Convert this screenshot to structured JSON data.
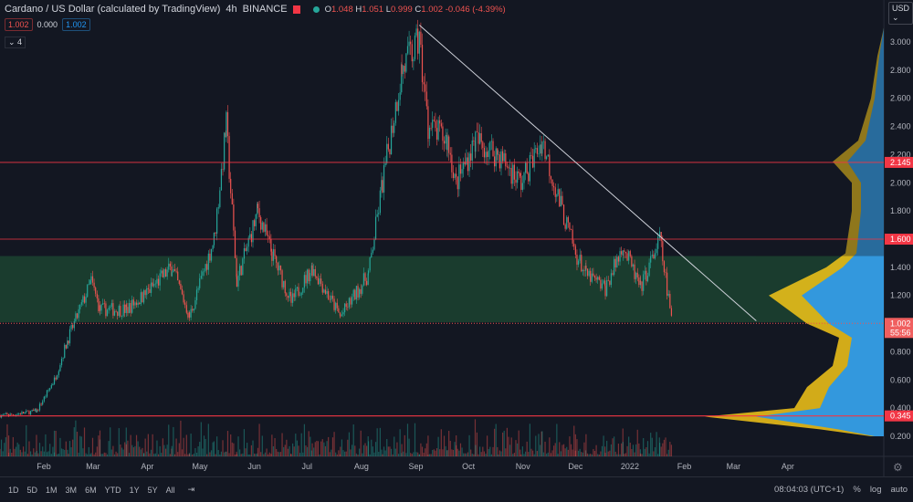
{
  "header": {
    "title": "Cardano / US Dollar (calculated by TradingView)",
    "interval": "4h",
    "exchange": "BINANCE",
    "ohlc": {
      "o_label": "O",
      "o": "1.048",
      "h_label": "H",
      "h": "1.051",
      "l_label": "L",
      "l": "0.999",
      "c_label": "C",
      "c": "1.002",
      "change": "-0.046 (-4.39%)"
    },
    "bid": "1.002",
    "spread": "0.000",
    "ask": "1.002",
    "indicator_count": "4"
  },
  "currency": "USD",
  "bottom": {
    "ranges": [
      "1D",
      "5D",
      "1M",
      "3M",
      "6M",
      "YTD",
      "1Y",
      "5Y",
      "All"
    ],
    "clock": "08:04:03 (UTC+1)",
    "percent": "%",
    "log": "log",
    "auto": "auto"
  },
  "colors": {
    "up": "#26a69a",
    "down": "#ef5350",
    "zone": "#1e4a33",
    "line": "#f23645",
    "profile_blue": "#2196f3",
    "profile_yellow": "#f5c518"
  },
  "chart_data": {
    "type": "candlestick",
    "ylim": [
      0.1,
      3.2
    ],
    "y_ticks": [
      "3.000",
      "2.800",
      "2.600",
      "2.400",
      "2.200",
      "2.000",
      "1.800",
      "1.400",
      "1.200",
      "0.800",
      "0.600",
      "0.400",
      "0.200"
    ],
    "x_ticks": [
      [
        "Feb",
        "2021-02-01"
      ],
      [
        "Mar",
        "2021-03-01"
      ],
      [
        "Apr",
        "2021-04-01"
      ],
      [
        "May",
        "2021-05-01"
      ],
      [
        "Jun",
        "2021-06-01"
      ],
      [
        "Jul",
        "2021-07-01"
      ],
      [
        "Aug",
        "2021-08-01"
      ],
      [
        "Sep",
        "2021-09-01"
      ],
      [
        "Oct",
        "2021-10-01"
      ],
      [
        "Nov",
        "2021-11-01"
      ],
      [
        "Dec",
        "2021-12-01"
      ],
      [
        "2022",
        "2022-01-01"
      ],
      [
        "Feb",
        "2022-02-01"
      ],
      [
        "Mar",
        "2022-03-01"
      ],
      [
        "Apr",
        "2022-04-01"
      ]
    ],
    "price_path": [
      [
        "2021-01-07",
        0.35
      ],
      [
        "2021-01-12",
        0.35
      ],
      [
        "2021-01-28",
        0.38
      ],
      [
        "2021-02-07",
        0.6
      ],
      [
        "2021-02-15",
        0.9
      ],
      [
        "2021-02-28",
        1.3
      ],
      [
        "2021-03-05",
        1.1
      ],
      [
        "2021-03-20",
        1.1
      ],
      [
        "2021-03-30",
        1.2
      ],
      [
        "2021-04-15",
        1.4
      ],
      [
        "2021-04-25",
        1.05
      ],
      [
        "2021-05-09",
        1.6
      ],
      [
        "2021-05-16",
        2.4
      ],
      [
        "2021-05-22",
        1.3
      ],
      [
        "2021-06-03",
        1.8
      ],
      [
        "2021-06-11",
        1.5
      ],
      [
        "2021-06-22",
        1.15
      ],
      [
        "2021-07-04",
        1.4
      ],
      [
        "2021-07-20",
        1.05
      ],
      [
        "2021-08-05",
        1.35
      ],
      [
        "2021-08-13",
        2.0
      ],
      [
        "2021-08-24",
        2.8
      ],
      [
        "2021-09-03",
        3.0
      ],
      [
        "2021-09-08",
        2.4
      ],
      [
        "2021-09-19",
        2.3
      ],
      [
        "2021-09-24",
        2.0
      ],
      [
        "2021-10-05",
        2.3
      ],
      [
        "2021-10-18",
        2.2
      ],
      [
        "2021-10-31",
        2.0
      ],
      [
        "2021-11-12",
        2.3
      ],
      [
        "2021-11-21",
        1.9
      ],
      [
        "2021-12-01",
        1.5
      ],
      [
        "2021-12-07",
        1.35
      ],
      [
        "2021-12-18",
        1.25
      ],
      [
        "2021-12-28",
        1.55
      ],
      [
        "2022-01-07",
        1.25
      ],
      [
        "2022-01-18",
        1.6
      ],
      [
        "2022-01-25",
        1.002
      ]
    ],
    "horizontal_lines": [
      {
        "label": "2.145",
        "price": 2.145
      },
      {
        "label": "1.600",
        "price": 1.6
      },
      {
        "label": "0.345",
        "price": 0.345
      }
    ],
    "zone": {
      "from": 1.01,
      "to": 1.48
    },
    "trendline": [
      [
        "2021-09-03",
        3.12
      ],
      [
        "2022-03-14",
        1.02
      ]
    ],
    "last_price": {
      "label": "1.002",
      "countdown": "55:56",
      "price": 1.002
    },
    "volume_profile": [
      [
        3.1,
        0.0
      ],
      [
        2.9,
        0.05
      ],
      [
        2.6,
        0.1
      ],
      [
        2.3,
        0.2
      ],
      [
        2.15,
        0.4
      ],
      [
        2.0,
        0.25
      ],
      [
        1.8,
        0.25
      ],
      [
        1.5,
        0.3
      ],
      [
        1.4,
        0.45
      ],
      [
        1.2,
        0.9
      ],
      [
        1.0,
        0.6
      ],
      [
        0.9,
        0.35
      ],
      [
        0.7,
        0.4
      ],
      [
        0.55,
        0.6
      ],
      [
        0.4,
        0.7
      ],
      [
        0.34,
        1.4
      ],
      [
        0.25,
        0.5
      ],
      [
        0.2,
        0.1
      ]
    ]
  }
}
